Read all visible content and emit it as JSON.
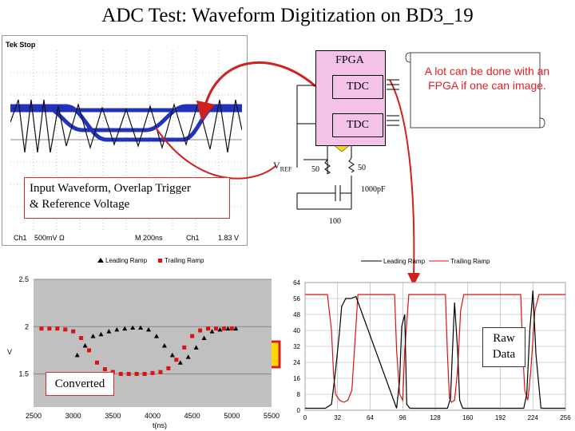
{
  "title": "ADC Test: Waveform Digitization on BD3_19",
  "scope": {
    "header": "Tek Stop",
    "ch_label": "Ch1",
    "ch_scale": "500mV Ω",
    "timebase": "M 200ns",
    "trig_ch": "Ch1",
    "trig_level": "1.83 V"
  },
  "fpga": {
    "label": "FPGA",
    "tdc1": "TDC",
    "tdc2": "TDC",
    "vref": "V",
    "vref_sub": "REF",
    "r1": "50",
    "r2": "50",
    "cap": "1000pF",
    "r3": "100"
  },
  "scroll_note": "A lot can be done with an FPGA if one can image.",
  "input_callout": {
    "line1": "Input Waveform, Overlap Trigger",
    "line2": "& Reference Voltage"
  },
  "converted_label": "Converted",
  "raw_label": "Raw Data",
  "chart_data": [
    {
      "type": "scatter",
      "legend": [
        "Leading Ramp",
        "Trailing Ramp"
      ],
      "colors": {
        "leading": "#000000",
        "trailing": "#e01010"
      },
      "xlabel": "t(ns)",
      "ylabel": "V",
      "xlim": [
        2500,
        5500
      ],
      "ylim": [
        1.15,
        2.5
      ],
      "xticks": [
        "2500",
        "3000",
        "3500",
        "4000",
        "4500",
        "5000",
        "5500"
      ],
      "yticks": [
        "2.5",
        "2",
        "1.5"
      ],
      "series": [
        {
          "name": "Leading Ramp",
          "points": [
            [
              3050,
              1.7
            ],
            [
              3150,
              1.8
            ],
            [
              3250,
              1.9
            ],
            [
              3350,
              1.92
            ],
            [
              3450,
              1.95
            ],
            [
              3550,
              1.97
            ],
            [
              3650,
              1.98
            ],
            [
              3750,
              1.99
            ],
            [
              3850,
              1.99
            ],
            [
              3950,
              1.97
            ],
            [
              4050,
              1.9
            ],
            [
              4150,
              1.8
            ],
            [
              4250,
              1.7
            ],
            [
              4350,
              1.62
            ],
            [
              4450,
              1.68
            ],
            [
              4550,
              1.78
            ],
            [
              4650,
              1.88
            ],
            [
              4750,
              1.95
            ],
            [
              4850,
              1.97
            ],
            [
              4950,
              1.98
            ],
            [
              5050,
              1.98
            ]
          ]
        },
        {
          "name": "Trailing Ramp",
          "points": [
            [
              2600,
              1.98
            ],
            [
              2700,
              1.98
            ],
            [
              2800,
              1.98
            ],
            [
              2900,
              1.97
            ],
            [
              3000,
              1.95
            ],
            [
              3100,
              1.88
            ],
            [
              3200,
              1.75
            ],
            [
              3300,
              1.62
            ],
            [
              3400,
              1.55
            ],
            [
              3500,
              1.52
            ],
            [
              3600,
              1.5
            ],
            [
              3700,
              1.5
            ],
            [
              3800,
              1.5
            ],
            [
              3900,
              1.5
            ],
            [
              4000,
              1.51
            ],
            [
              4100,
              1.52
            ],
            [
              4200,
              1.56
            ],
            [
              4300,
              1.65
            ],
            [
              4400,
              1.78
            ],
            [
              4500,
              1.9
            ],
            [
              4600,
              1.96
            ],
            [
              4700,
              1.98
            ],
            [
              4800,
              1.98
            ],
            [
              4900,
              1.98
            ],
            [
              5000,
              1.98
            ]
          ]
        }
      ]
    },
    {
      "type": "line",
      "legend": [
        "Leading Ramp",
        "Trailing Ramp"
      ],
      "colors": {
        "leading": "#000000",
        "trailing": "#e01010"
      },
      "xlim": [
        0,
        256
      ],
      "ylim": [
        0,
        64
      ],
      "xticks": [
        "0",
        "32",
        "64",
        "96",
        "128",
        "160",
        "192",
        "224",
        "256"
      ],
      "yticks": [
        "64",
        "56",
        "48",
        "40",
        "32",
        "24",
        "16",
        "8",
        "0"
      ],
      "series": [
        {
          "name": "Leading Ramp",
          "x": [
            0,
            20,
            26,
            30,
            34,
            36,
            40,
            45,
            50,
            90,
            93,
            95,
            98,
            100,
            103,
            140,
            143,
            145,
            147,
            150,
            152,
            155,
            160,
            215,
            218,
            221,
            224,
            227,
            232,
            256
          ],
          "y": [
            1,
            1,
            3,
            20,
            40,
            52,
            56,
            56,
            57,
            1,
            15,
            42,
            48,
            3,
            1,
            1,
            6,
            30,
            54,
            30,
            5,
            1,
            1,
            1,
            8,
            40,
            60,
            28,
            1,
            1
          ]
        },
        {
          "name": "Trailing Ramp",
          "x": [
            0,
            22,
            26,
            28,
            30,
            34,
            38,
            42,
            46,
            52,
            88,
            90,
            93,
            96,
            98,
            102,
            106,
            138,
            140,
            142,
            144,
            147,
            150,
            153,
            156,
            212,
            214,
            216,
            219,
            222,
            226,
            230,
            256
          ],
          "y": [
            58,
            58,
            40,
            18,
            8,
            5,
            4,
            5,
            10,
            58,
            58,
            30,
            8,
            5,
            30,
            58,
            58,
            58,
            28,
            6,
            4,
            5,
            20,
            50,
            58,
            58,
            30,
            10,
            5,
            20,
            50,
            58,
            58
          ]
        }
      ]
    }
  ]
}
